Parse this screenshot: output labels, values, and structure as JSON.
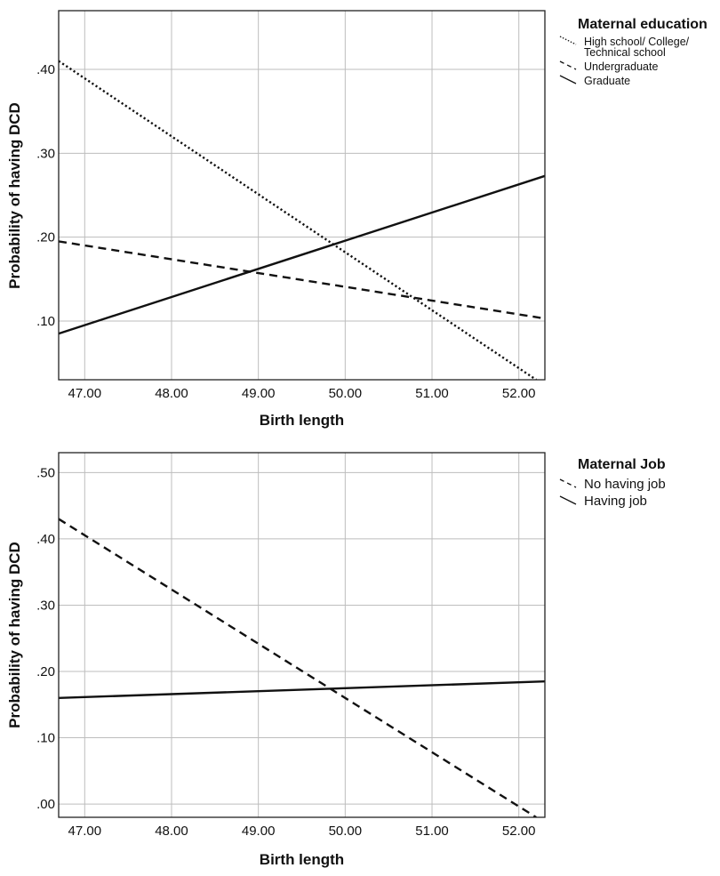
{
  "chart_data": [
    {
      "type": "line",
      "title": "",
      "xlabel": "Birth length",
      "ylabel": "Probability of having DCD",
      "xlim": [
        46.7,
        52.3
      ],
      "ylim": [
        0.03,
        0.47
      ],
      "xticks": [
        47,
        48,
        49,
        50,
        51,
        52
      ],
      "xtick_labels": [
        "47.00",
        "48.00",
        "49.00",
        "50.00",
        "51.00",
        "52.00"
      ],
      "yticks": [
        0.1,
        0.2,
        0.3,
        0.4
      ],
      "ytick_labels": [
        ".10",
        ".20",
        ".30",
        ".40"
      ],
      "grid": true,
      "legend_title": "Maternal education",
      "legend_position": "right",
      "series": [
        {
          "name": "High school/ College/ Technical school",
          "label_lines": [
            "High school/ College/",
            "Technical school"
          ],
          "style": "dotted",
          "x": [
            46.7,
            52.2
          ],
          "y": [
            0.41,
            0.03
          ]
        },
        {
          "name": "Undergraduate",
          "label_lines": [
            "Undergraduate"
          ],
          "style": "dashed",
          "x": [
            46.7,
            52.3
          ],
          "y": [
            0.195,
            0.103
          ]
        },
        {
          "name": "Graduate",
          "label_lines": [
            "Graduate"
          ],
          "style": "solid",
          "x": [
            46.7,
            52.3
          ],
          "y": [
            0.085,
            0.273
          ]
        }
      ]
    },
    {
      "type": "line",
      "title": "",
      "xlabel": "Birth length",
      "ylabel": "Probability of having DCD",
      "xlim": [
        46.7,
        52.3
      ],
      "ylim": [
        -0.02,
        0.53
      ],
      "xticks": [
        47,
        48,
        49,
        50,
        51,
        52
      ],
      "xtick_labels": [
        "47.00",
        "48.00",
        "49.00",
        "50.00",
        "51.00",
        "52.00"
      ],
      "yticks": [
        0,
        0.1,
        0.2,
        0.3,
        0.4,
        0.5
      ],
      "ytick_labels": [
        ".00",
        ".10",
        ".20",
        ".30",
        ".40",
        ".50"
      ],
      "grid": true,
      "legend_title": "Maternal Job",
      "legend_position": "right",
      "series": [
        {
          "name": "No having job",
          "label_lines": [
            "No having job"
          ],
          "style": "dashed",
          "x": [
            46.7,
            52.2
          ],
          "y": [
            0.43,
            -0.02
          ]
        },
        {
          "name": "Having job",
          "label_lines": [
            "Having job"
          ],
          "style": "solid",
          "x": [
            46.7,
            52.3
          ],
          "y": [
            0.16,
            0.185
          ]
        }
      ]
    }
  ]
}
